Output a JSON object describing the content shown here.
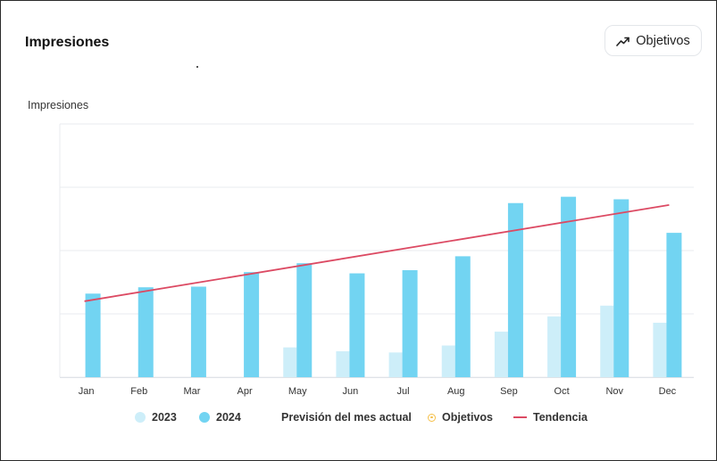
{
  "header": {
    "title": "Impresiones",
    "objetivos_button_label": "Objetivos",
    "objetivos_button_icon": "trend-up-icon"
  },
  "colors": {
    "series_2023": "#cdeef9",
    "series_2024": "#72d4f2",
    "trend": "#dc4a63",
    "objetivos": "#f5c04a",
    "grid": "#e8ebef"
  },
  "chart_data": {
    "type": "bar",
    "title": "Impresiones",
    "ylabel": "Impresiones",
    "xlabel": "",
    "categories": [
      "Jan",
      "Feb",
      "Mar",
      "Apr",
      "May",
      "Jun",
      "Jul",
      "Aug",
      "Sep",
      "Oct",
      "Nov",
      "Dec"
    ],
    "ylim": [
      0,
      4
    ],
    "grid": true,
    "y_tick_labels_shown": false,
    "legend_position": "bottom",
    "series": [
      {
        "name": "2023",
        "values": [
          0,
          0,
          0,
          0,
          0.47,
          0.41,
          0.39,
          0.5,
          0.72,
          0.96,
          1.13,
          0.86
        ]
      },
      {
        "name": "2024",
        "values": [
          1.32,
          1.42,
          1.43,
          1.66,
          1.8,
          1.64,
          1.69,
          1.91,
          2.75,
          2.85,
          2.81,
          2.28
        ]
      }
    ],
    "trend": {
      "name": "Tendencia",
      "start": 1.2,
      "end": 2.72
    },
    "legend": [
      "2023",
      "2024",
      "Previsión del mes actual",
      "Objetivos",
      "Tendencia"
    ]
  }
}
